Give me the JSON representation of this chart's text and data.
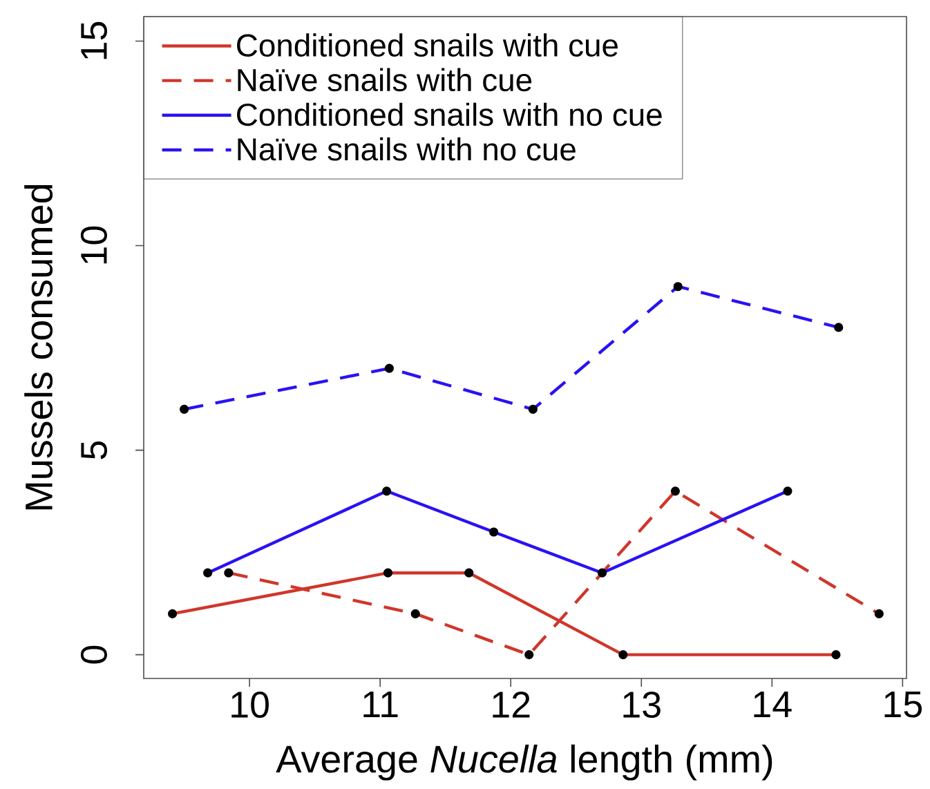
{
  "chart_data": {
    "type": "line",
    "xlabel": "Average *Nucella* length (mm)",
    "ylabel": "Mussels consumed",
    "xlim": [
      9.19,
      15.03
    ],
    "ylim": [
      -0.58,
      15.6
    ],
    "xticks": [
      10,
      11,
      12,
      13,
      14,
      15
    ],
    "yticks": [
      0,
      5,
      10,
      15
    ],
    "grid": false,
    "legend": "top left",
    "marker": "circle",
    "series": [
      {
        "name": "Conditioned snails with cue",
        "color": "#d0362a",
        "line_style": "solid",
        "x": [
          9.41,
          11.06,
          11.68,
          12.86,
          14.49
        ],
        "values": [
          1,
          2,
          2,
          0,
          0
        ]
      },
      {
        "name": "Naïve snails with cue",
        "color": "#d0362a",
        "line_style": "dashed",
        "x": [
          9.84,
          11.27,
          12.14,
          13.26,
          14.82
        ],
        "values": [
          2,
          1,
          0,
          4,
          1
        ]
      },
      {
        "name": "Conditioned snails with no cue",
        "color": "#2a12f2",
        "line_style": "solid",
        "x": [
          9.68,
          11.05,
          11.87,
          12.7,
          14.12
        ],
        "values": [
          2,
          4,
          3,
          2,
          4
        ]
      },
      {
        "name": "Naïve snails with no cue",
        "color": "#2a12f2",
        "line_style": "dashed",
        "x": [
          9.5,
          11.07,
          12.17,
          13.28,
          14.51
        ],
        "values": [
          6,
          7,
          6,
          9,
          8
        ]
      }
    ]
  }
}
